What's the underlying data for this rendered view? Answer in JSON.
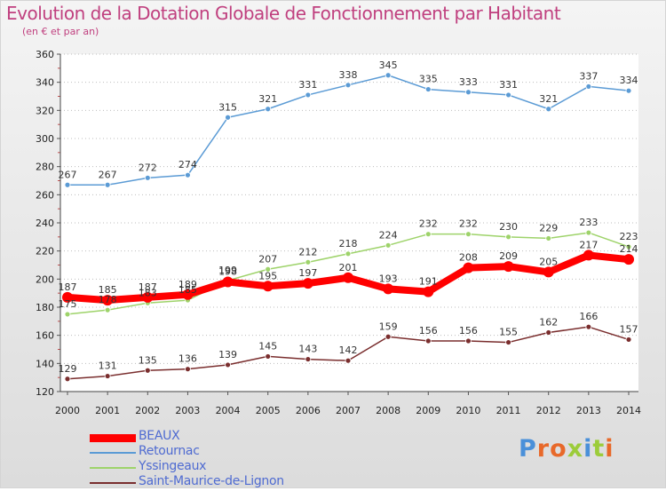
{
  "header": {
    "title": "Evolution de la Dotation Globale de Fonctionnement par Habitant",
    "subtitle": "(en € et par an)"
  },
  "logo": {
    "text": "Proxiti",
    "letter_colors": [
      "#4a90d9",
      "#e8692a",
      "#e8692a",
      "#9ccc3a",
      "#4a90d9",
      "#9ccc3a",
      "#e8692a"
    ]
  },
  "chart_data": {
    "type": "line",
    "x": [
      "2000",
      "2001",
      "2002",
      "2003",
      "2004",
      "2005",
      "2006",
      "2007",
      "2008",
      "2009",
      "2010",
      "2011",
      "2012",
      "2013",
      "2014"
    ],
    "ylim": [
      120,
      360
    ],
    "yticks": [
      120,
      140,
      160,
      180,
      200,
      220,
      240,
      260,
      280,
      300,
      320,
      340,
      360
    ],
    "grid": "horizontal-dotted",
    "legend": "bottom-left",
    "series": [
      {
        "name": "Retournac",
        "color": "#5b9bd5",
        "values": [
          267,
          267,
          272,
          274,
          315,
          321,
          331,
          338,
          345,
          335,
          333,
          331,
          321,
          337,
          334
        ]
      },
      {
        "name": "Yssingeaux",
        "color": "#9ed36a",
        "values": [
          175,
          178,
          183,
          185,
          199,
          207,
          212,
          218,
          224,
          232,
          232,
          230,
          229,
          233,
          223
        ]
      },
      {
        "name": "Saint-Maurice-de-Lignon",
        "color": "#7a2e2e",
        "values": [
          129,
          131,
          135,
          136,
          139,
          145,
          143,
          142,
          159,
          156,
          156,
          155,
          162,
          166,
          157
        ]
      },
      {
        "name": "BEAUX",
        "color": "#ff0000",
        "values": [
          187,
          185,
          187,
          189,
          198,
          195,
          197,
          201,
          193,
          191,
          208,
          209,
          205,
          217,
          214
        ]
      }
    ]
  },
  "legend_items": [
    {
      "label": "BEAUX",
      "color": "#ff0000",
      "thickness": 9
    },
    {
      "label": "Retournac",
      "color": "#5b9bd5",
      "thickness": 1.5
    },
    {
      "label": "Yssingeaux",
      "color": "#9ed36a",
      "thickness": 1.5
    },
    {
      "label": "Saint-Maurice-de-Lignon",
      "color": "#7a2e2e",
      "thickness": 1.5
    }
  ]
}
